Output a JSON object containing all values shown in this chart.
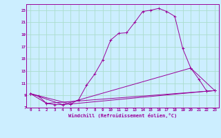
{
  "background_color": "#cceeff",
  "grid_color": "#aaddcc",
  "line_color": "#990099",
  "xlabel": "Windchill (Refroidissement éolien,°C)",
  "xlim": [
    -0.5,
    23.5
  ],
  "ylim": [
    7,
    24
  ],
  "yticks": [
    7,
    9,
    11,
    13,
    15,
    17,
    19,
    21,
    23
  ],
  "xticks": [
    0,
    1,
    2,
    3,
    4,
    5,
    6,
    7,
    8,
    9,
    10,
    11,
    12,
    13,
    14,
    15,
    16,
    17,
    18,
    19,
    20,
    21,
    22,
    23
  ],
  "series1": [
    [
      0,
      9.3
    ],
    [
      1,
      8.9
    ],
    [
      2,
      7.7
    ],
    [
      3,
      7.5
    ],
    [
      4,
      7.5
    ],
    [
      5,
      7.6
    ],
    [
      6,
      8.3
    ],
    [
      7,
      10.7
    ],
    [
      8,
      12.5
    ],
    [
      9,
      14.8
    ],
    [
      10,
      18.1
    ],
    [
      11,
      19.2
    ],
    [
      12,
      19.3
    ],
    [
      13,
      21.0
    ],
    [
      14,
      22.8
    ],
    [
      15,
      23.0
    ],
    [
      16,
      23.3
    ],
    [
      17,
      22.8
    ],
    [
      18,
      22.0
    ],
    [
      19,
      16.7
    ],
    [
      20,
      13.5
    ],
    [
      21,
      11.7
    ],
    [
      22,
      9.7
    ],
    [
      23,
      9.8
    ]
  ],
  "series2": [
    [
      0,
      9.3
    ],
    [
      2,
      7.7
    ],
    [
      23,
      9.8
    ]
  ],
  "series3": [
    [
      0,
      9.3
    ],
    [
      4,
      7.5
    ],
    [
      20,
      13.5
    ],
    [
      23,
      9.8
    ]
  ],
  "series4": [
    [
      0,
      9.3
    ],
    [
      5,
      7.6
    ],
    [
      22,
      9.7
    ],
    [
      23,
      9.8
    ]
  ]
}
